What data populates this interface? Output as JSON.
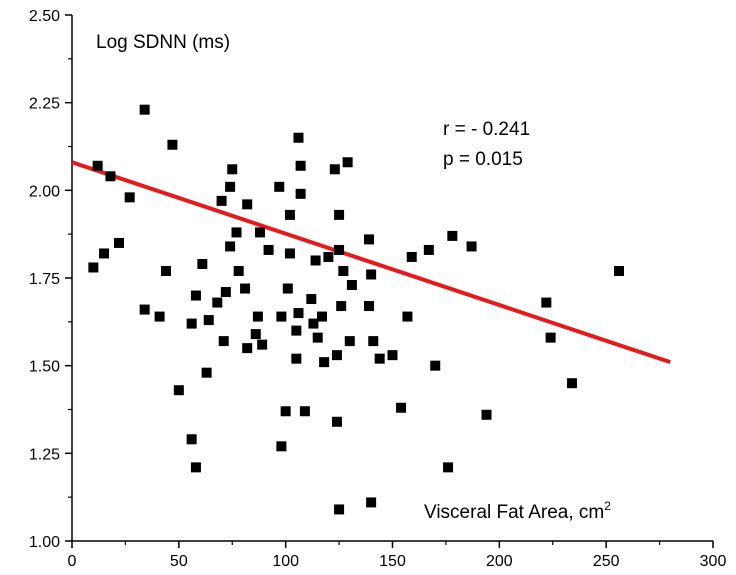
{
  "chart_data": {
    "type": "scatter",
    "title": "",
    "ylabel": "Log SDNN (ms)",
    "xlabel": "Visceral Fat Area, cm",
    "xlabel_superscript": "2",
    "xlim": [
      0,
      300
    ],
    "ylim": [
      1.0,
      2.5
    ],
    "x_ticks": [
      "0",
      "50",
      "100",
      "150",
      "200",
      "250",
      "300"
    ],
    "y_ticks": [
      "1.00",
      "1.25",
      "1.50",
      "1.75",
      "2.00",
      "2.25",
      "2.50"
    ],
    "grid": false,
    "annotations": {
      "r": "r = - 0.241",
      "p": "p =  0.015"
    },
    "marker_color": "#000000",
    "regression_color": "#e8191c",
    "regression_line": {
      "x": [
        0,
        280
      ],
      "y": [
        2.08,
        1.51
      ]
    },
    "points": [
      [
        10,
        1.78
      ],
      [
        12,
        2.07
      ],
      [
        15,
        1.82
      ],
      [
        18,
        2.04
      ],
      [
        22,
        1.85
      ],
      [
        27,
        1.98
      ],
      [
        34,
        2.23
      ],
      [
        34,
        1.66
      ],
      [
        41,
        1.64
      ],
      [
        44,
        1.77
      ],
      [
        47,
        2.13
      ],
      [
        50,
        1.43
      ],
      [
        56,
        1.62
      ],
      [
        56,
        1.29
      ],
      [
        58,
        1.7
      ],
      [
        58,
        1.21
      ],
      [
        61,
        1.79
      ],
      [
        63,
        1.48
      ],
      [
        64,
        1.63
      ],
      [
        68,
        1.68
      ],
      [
        70,
        1.97
      ],
      [
        71,
        1.57
      ],
      [
        72,
        1.71
      ],
      [
        74,
        1.84
      ],
      [
        74,
        2.01
      ],
      [
        75,
        2.06
      ],
      [
        77,
        1.88
      ],
      [
        78,
        1.77
      ],
      [
        81,
        1.72
      ],
      [
        82,
        1.96
      ],
      [
        82,
        1.55
      ],
      [
        86,
        1.59
      ],
      [
        87,
        1.64
      ],
      [
        88,
        1.88
      ],
      [
        89,
        1.56
      ],
      [
        92,
        1.83
      ],
      [
        97,
        2.01
      ],
      [
        98,
        1.64
      ],
      [
        98,
        1.27
      ],
      [
        100,
        1.37
      ],
      [
        101,
        1.72
      ],
      [
        102,
        1.93
      ],
      [
        102,
        1.82
      ],
      [
        105,
        1.52
      ],
      [
        105,
        1.6
      ],
      [
        106,
        1.65
      ],
      [
        106,
        2.15
      ],
      [
        107,
        2.07
      ],
      [
        107,
        1.99
      ],
      [
        109,
        1.37
      ],
      [
        112,
        1.69
      ],
      [
        113,
        1.62
      ],
      [
        114,
        1.8
      ],
      [
        115,
        1.58
      ],
      [
        117,
        1.64
      ],
      [
        118,
        1.51
      ],
      [
        120,
        1.81
      ],
      [
        123,
        2.06
      ],
      [
        124,
        1.34
      ],
      [
        124,
        1.53
      ],
      [
        125,
        1.09
      ],
      [
        125,
        1.83
      ],
      [
        125,
        1.93
      ],
      [
        126,
        1.67
      ],
      [
        127,
        1.77
      ],
      [
        129,
        2.08
      ],
      [
        130,
        1.57
      ],
      [
        131,
        1.73
      ],
      [
        139,
        1.86
      ],
      [
        139,
        1.67
      ],
      [
        140,
        1.76
      ],
      [
        140,
        1.11
      ],
      [
        141,
        1.57
      ],
      [
        144,
        1.52
      ],
      [
        150,
        1.53
      ],
      [
        154,
        1.38
      ],
      [
        157,
        1.64
      ],
      [
        159,
        1.81
      ],
      [
        167,
        1.83
      ],
      [
        170,
        1.5
      ],
      [
        176,
        1.21
      ],
      [
        178,
        1.87
      ],
      [
        187,
        1.84
      ],
      [
        194,
        1.36
      ],
      [
        222,
        1.68
      ],
      [
        224,
        1.58
      ],
      [
        234,
        1.45
      ],
      [
        256,
        1.77
      ]
    ]
  }
}
